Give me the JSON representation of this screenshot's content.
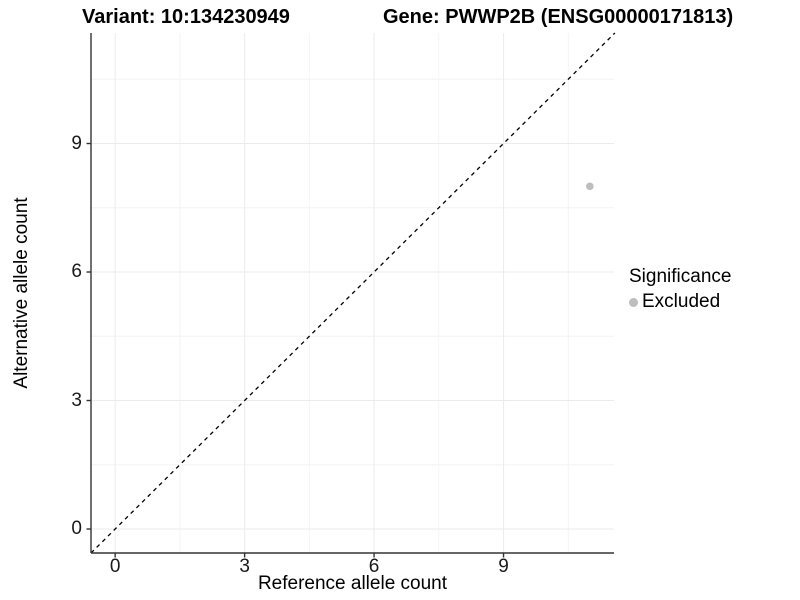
{
  "chart_data": {
    "type": "scatter",
    "title_left": "Variant: 10:134230949",
    "title_right": "Gene: PWWP2B (ENSG00000171813)",
    "xlabel": "Reference allele count",
    "ylabel": "Alternative allele count",
    "xlim": [
      -0.56,
      11.56
    ],
    "ylim": [
      -0.56,
      11.58
    ],
    "x_major_ticks": [
      0,
      3,
      6,
      9
    ],
    "y_major_ticks": [
      0,
      3,
      6,
      9
    ],
    "x_minor_ticks": [
      1.5,
      4.5,
      7.5,
      10.5
    ],
    "y_minor_ticks": [
      1.5,
      4.5,
      7.5,
      10.5
    ],
    "grid": "major+minor",
    "identity_line": {
      "style": "dashed",
      "x1": -0.56,
      "y1": -0.56,
      "x2": 11.58,
      "y2": 11.58
    },
    "points": [
      {
        "x": 11,
        "y": 8,
        "series": "Excluded"
      }
    ],
    "legend": {
      "position": "right",
      "title": "Significance",
      "items": [
        {
          "label": "Excluded",
          "color": "#bebebe"
        }
      ]
    },
    "colors": {
      "point_excluded": "#bebebe",
      "grid_major": "#ebebeb",
      "grid_minor": "#f4f4f4",
      "axis_line": "#333333",
      "dashed_line": "#000000",
      "text": "#000000"
    }
  }
}
